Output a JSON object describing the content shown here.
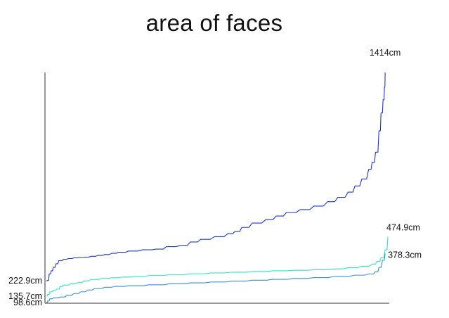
{
  "chart_data": {
    "type": "line",
    "title": "area of faces",
    "xlabel": "",
    "ylabel": "",
    "grid": false,
    "colors": {
      "axis": "#333333",
      "text": "#111111"
    },
    "series": [
      {
        "color": "#1b35d8",
        "start_label": "222.9cm",
        "end_label": "1414cm",
        "start_value": 222.9,
        "end_value": 1414,
        "profile": [
          [
            0,
            222.9
          ],
          [
            2,
            226
          ],
          [
            4,
            262
          ],
          [
            7,
            280
          ],
          [
            10,
            300
          ],
          [
            14,
            320
          ],
          [
            18,
            338
          ],
          [
            25,
            346
          ],
          [
            32,
            350
          ],
          [
            40,
            354
          ],
          [
            48,
            356
          ],
          [
            56,
            358
          ],
          [
            65,
            363
          ],
          [
            75,
            368
          ],
          [
            85,
            373
          ],
          [
            95,
            380
          ],
          [
            105,
            386
          ],
          [
            120,
            393
          ],
          [
            140,
            400
          ],
          [
            160,
            404
          ],
          [
            175,
            418
          ],
          [
            195,
            425
          ],
          [
            210,
            445
          ],
          [
            225,
            460
          ],
          [
            245,
            475
          ],
          [
            265,
            493
          ],
          [
            275,
            505
          ],
          [
            285,
            528
          ],
          [
            300,
            553
          ],
          [
            320,
            573
          ],
          [
            335,
            593
          ],
          [
            350,
            613
          ],
          [
            370,
            630
          ],
          [
            390,
            650
          ],
          [
            410,
            675
          ],
          [
            425,
            700
          ],
          [
            440,
            730
          ],
          [
            450,
            765
          ],
          [
            460,
            805
          ],
          [
            470,
            860
          ],
          [
            475,
            900
          ],
          [
            480,
            958
          ],
          [
            485,
            1080
          ],
          [
            488,
            1183
          ],
          [
            491,
            1258
          ],
          [
            493,
            1330
          ],
          [
            494,
            1414
          ]
        ]
      },
      {
        "color": "#2de6b8",
        "start_label": "135.7cm",
        "end_label": "474.9cm",
        "start_value": 135.7,
        "end_value": 474.9,
        "profile": [
          [
            0,
            135.7
          ],
          [
            2,
            145
          ],
          [
            5,
            160
          ],
          [
            10,
            168
          ],
          [
            15,
            175
          ],
          [
            20,
            190
          ],
          [
            25,
            198
          ],
          [
            35,
            205
          ],
          [
            45,
            212
          ],
          [
            55,
            222
          ],
          [
            65,
            230
          ],
          [
            80,
            236
          ],
          [
            95,
            240
          ],
          [
            110,
            244
          ],
          [
            130,
            248
          ],
          [
            150,
            253
          ],
          [
            180,
            258
          ],
          [
            210,
            263
          ],
          [
            240,
            268
          ],
          [
            270,
            272
          ],
          [
            300,
            276
          ],
          [
            330,
            280
          ],
          [
            360,
            283
          ],
          [
            390,
            286
          ],
          [
            420,
            291
          ],
          [
            440,
            298
          ],
          [
            460,
            306
          ],
          [
            475,
            318
          ],
          [
            482,
            333
          ],
          [
            488,
            355
          ],
          [
            494,
            400
          ],
          [
            498,
            474.9
          ]
        ]
      },
      {
        "color": "#3b8ee0",
        "start_label": "98.6cm",
        "end_label": "378.3cm",
        "start_value": 98.6,
        "end_value": 378.3,
        "profile": [
          [
            0,
            98.6
          ],
          [
            2,
            108
          ],
          [
            5,
            120
          ],
          [
            10,
            125
          ],
          [
            20,
            130
          ],
          [
            30,
            140
          ],
          [
            40,
            150
          ],
          [
            50,
            160
          ],
          [
            60,
            170
          ],
          [
            70,
            178
          ],
          [
            85,
            186
          ],
          [
            100,
            191
          ],
          [
            120,
            195
          ],
          [
            150,
            200
          ],
          [
            180,
            206
          ],
          [
            210,
            211
          ],
          [
            240,
            216
          ],
          [
            270,
            221
          ],
          [
            300,
            226
          ],
          [
            330,
            231
          ],
          [
            360,
            236
          ],
          [
            390,
            241
          ],
          [
            420,
            248
          ],
          [
            450,
            255
          ],
          [
            470,
            262
          ],
          [
            480,
            275
          ],
          [
            485,
            300
          ],
          [
            490,
            340
          ],
          [
            494,
            378.3
          ]
        ]
      }
    ]
  }
}
